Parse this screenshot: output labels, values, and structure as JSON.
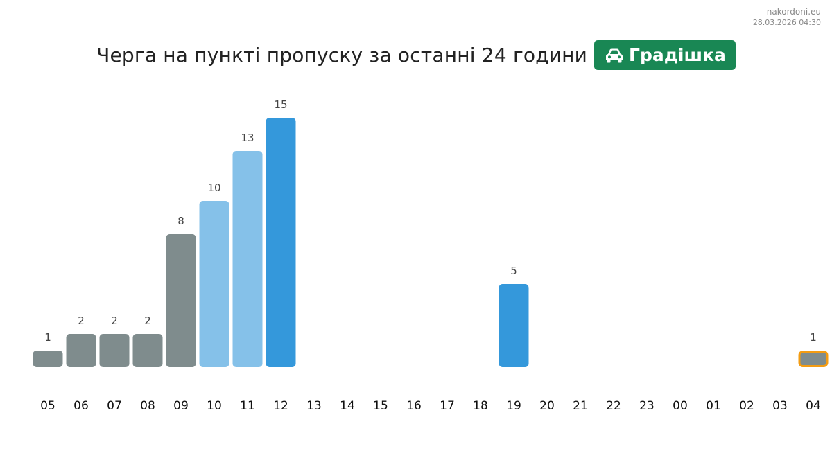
{
  "corner": {
    "site": "nakordoni.eu",
    "timestamp": "28.03.2026 04:30"
  },
  "title": "Черга на пункті пропуску за останні 24 години",
  "badge": {
    "label": "Градішка",
    "icon": "car-icon",
    "color": "#198754"
  },
  "chart_data": {
    "type": "bar",
    "categories": [
      "05",
      "06",
      "07",
      "08",
      "09",
      "10",
      "11",
      "12",
      "13",
      "14",
      "15",
      "16",
      "17",
      "18",
      "19",
      "20",
      "21",
      "22",
      "23",
      "00",
      "01",
      "02",
      "03",
      "04"
    ],
    "values": [
      1,
      2,
      2,
      2,
      8,
      10,
      13,
      15,
      0,
      0,
      0,
      0,
      0,
      0,
      5,
      0,
      0,
      0,
      0,
      0,
      0,
      0,
      0,
      1
    ],
    "bar_colors": [
      "#7f8c8d",
      "#7f8c8d",
      "#7f8c8d",
      "#7f8c8d",
      "#7f8c8d",
      "#85c1e9",
      "#85c1e9",
      "#3498db",
      "",
      "",
      "",
      "",
      "",
      "",
      "#3498db",
      "",
      "",
      "",
      "",
      "",
      "",
      "",
      "",
      "#7f8c8d"
    ],
    "highlight_index": 23,
    "highlight_color": "#f39c12",
    "ylim": [
      0,
      15
    ],
    "xlabel": "",
    "ylabel": ""
  }
}
